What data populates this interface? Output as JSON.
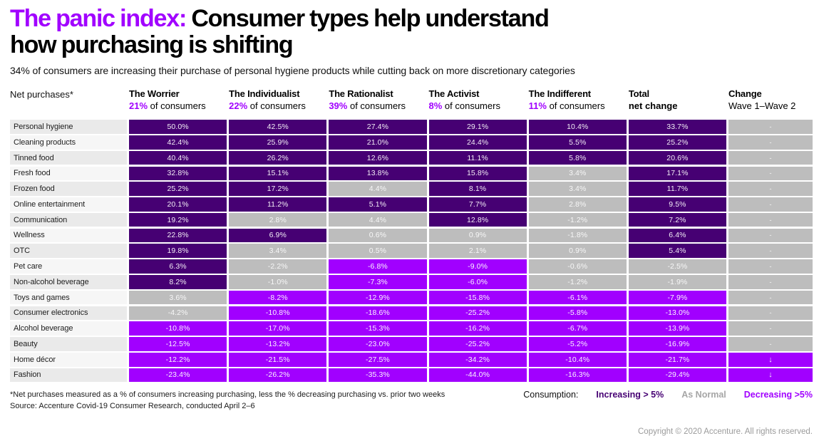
{
  "page": {
    "title_highlight": "The panic index:",
    "title_line1_rest": " Consumer types help understand",
    "title_line2": "how purchasing is shifting",
    "subtitle": "34% of consumers are increasing their purchase of personal hygiene products while cutting back on more discretionary categories",
    "footnote_line1": "*Net purchases measured as a % of consumers increasing purchasing, less the % decreasing purchasing vs. prior two weeks",
    "footnote_line2": "Source: Accenture Covid-19 Consumer Research, conducted April 2–6",
    "copyright": "Copyright © 2020 Accenture. All rights reserved."
  },
  "table": {
    "corner_label": "Net purchases*",
    "total_header": {
      "line1": "Total",
      "line2": "net change"
    },
    "change_header": {
      "line1": "Change",
      "line2": "Wave 1–Wave 2"
    }
  },
  "legend": {
    "label": "Consumption:",
    "items": [
      {
        "key": "inc",
        "label": "Increasing > 5%",
        "color": "#460073"
      },
      {
        "key": "norm",
        "label": "As Normal",
        "color": "#a6a6a6"
      },
      {
        "key": "dec",
        "label": "Decreasing >5%",
        "color": "#a100ff"
      }
    ]
  },
  "colors": {
    "increasing": "#460073",
    "as_normal": "#bdbdbd",
    "decreasing": "#a100ff",
    "accent": "#a100ff"
  },
  "chart_data": {
    "type": "heatmap",
    "unit": "%",
    "value_note": "net purchases: % of consumers increasing purchasing less % decreasing, vs prior two weeks",
    "state_rule": {
      "inc": "> 5",
      "norm": "-5 to 5",
      "dec": "< -5"
    },
    "personas": [
      {
        "name": "The Worrier",
        "share": "21%",
        "share_suffix": " of consumers"
      },
      {
        "name": "The Individualist",
        "share": "22%",
        "share_suffix": " of consumers"
      },
      {
        "name": "The Rationalist",
        "share": "39%",
        "share_suffix": " of consumers"
      },
      {
        "name": "The Activist",
        "share": "8%",
        "share_suffix": " of consumers"
      },
      {
        "name": "The Indifferent",
        "share": "11%",
        "share_suffix": " of consumers"
      }
    ],
    "value_columns": [
      "The Worrier",
      "The Individualist",
      "The Rationalist",
      "The Activist",
      "The Indifferent",
      "Total net change"
    ],
    "rows": [
      {
        "label": "Personal hygiene",
        "values": [
          50.0,
          42.5,
          27.4,
          29.1,
          10.4,
          33.7
        ],
        "change": "-"
      },
      {
        "label": "Cleaning products",
        "values": [
          42.4,
          25.9,
          21.0,
          24.4,
          5.5,
          25.2
        ],
        "change": "-"
      },
      {
        "label": "Tinned food",
        "values": [
          40.4,
          26.2,
          12.6,
          11.1,
          5.8,
          20.6
        ],
        "change": "-"
      },
      {
        "label": "Fresh food",
        "values": [
          32.8,
          15.1,
          13.8,
          15.8,
          3.4,
          17.1
        ],
        "change": "-"
      },
      {
        "label": "Frozen food",
        "values": [
          25.2,
          17.2,
          4.4,
          8.1,
          3.4,
          11.7
        ],
        "change": "-"
      },
      {
        "label": "Online entertainment",
        "values": [
          20.1,
          11.2,
          5.1,
          7.7,
          2.8,
          9.5
        ],
        "change": "-"
      },
      {
        "label": "Communication",
        "values": [
          19.2,
          2.8,
          4.4,
          12.8,
          -1.2,
          7.2
        ],
        "change": "-"
      },
      {
        "label": "Wellness",
        "values": [
          22.8,
          6.9,
          0.6,
          0.9,
          -1.8,
          6.4
        ],
        "change": "-"
      },
      {
        "label": "OTC",
        "values": [
          19.8,
          3.4,
          0.5,
          2.1,
          0.9,
          5.4
        ],
        "change": "-"
      },
      {
        "label": "Pet care",
        "values": [
          6.3,
          -2.2,
          -6.8,
          -9.0,
          -0.6,
          -2.5
        ],
        "change": "-"
      },
      {
        "label": "Non-alcohol beverage",
        "values": [
          8.2,
          -1.0,
          -7.3,
          -6.0,
          -1.2,
          -1.9
        ],
        "change": "-"
      },
      {
        "label": "Toys and games",
        "values": [
          3.6,
          -8.2,
          -12.9,
          -15.8,
          -6.1,
          -7.9
        ],
        "change": "-"
      },
      {
        "label": "Consumer electronics",
        "values": [
          -4.2,
          -10.8,
          -18.6,
          -25.2,
          -5.8,
          -13.0
        ],
        "change": "-"
      },
      {
        "label": "Alcohol beverage",
        "values": [
          -10.8,
          -17.0,
          -15.3,
          -16.2,
          -6.7,
          -13.9
        ],
        "change": "-"
      },
      {
        "label": "Beauty",
        "values": [
          -12.5,
          -13.2,
          -23.0,
          -25.2,
          -5.2,
          -16.9
        ],
        "change": "-"
      },
      {
        "label": "Home décor",
        "values": [
          -12.2,
          -21.5,
          -27.5,
          -34.2,
          -10.4,
          -21.7
        ],
        "change": "↓"
      },
      {
        "label": "Fashion",
        "values": [
          -23.4,
          -26.2,
          -35.3,
          -44.0,
          -16.3,
          -29.4
        ],
        "change": "↓"
      }
    ],
    "legend_entries": [
      "Increasing > 5%",
      "As Normal",
      "Decreasing >5%"
    ]
  }
}
